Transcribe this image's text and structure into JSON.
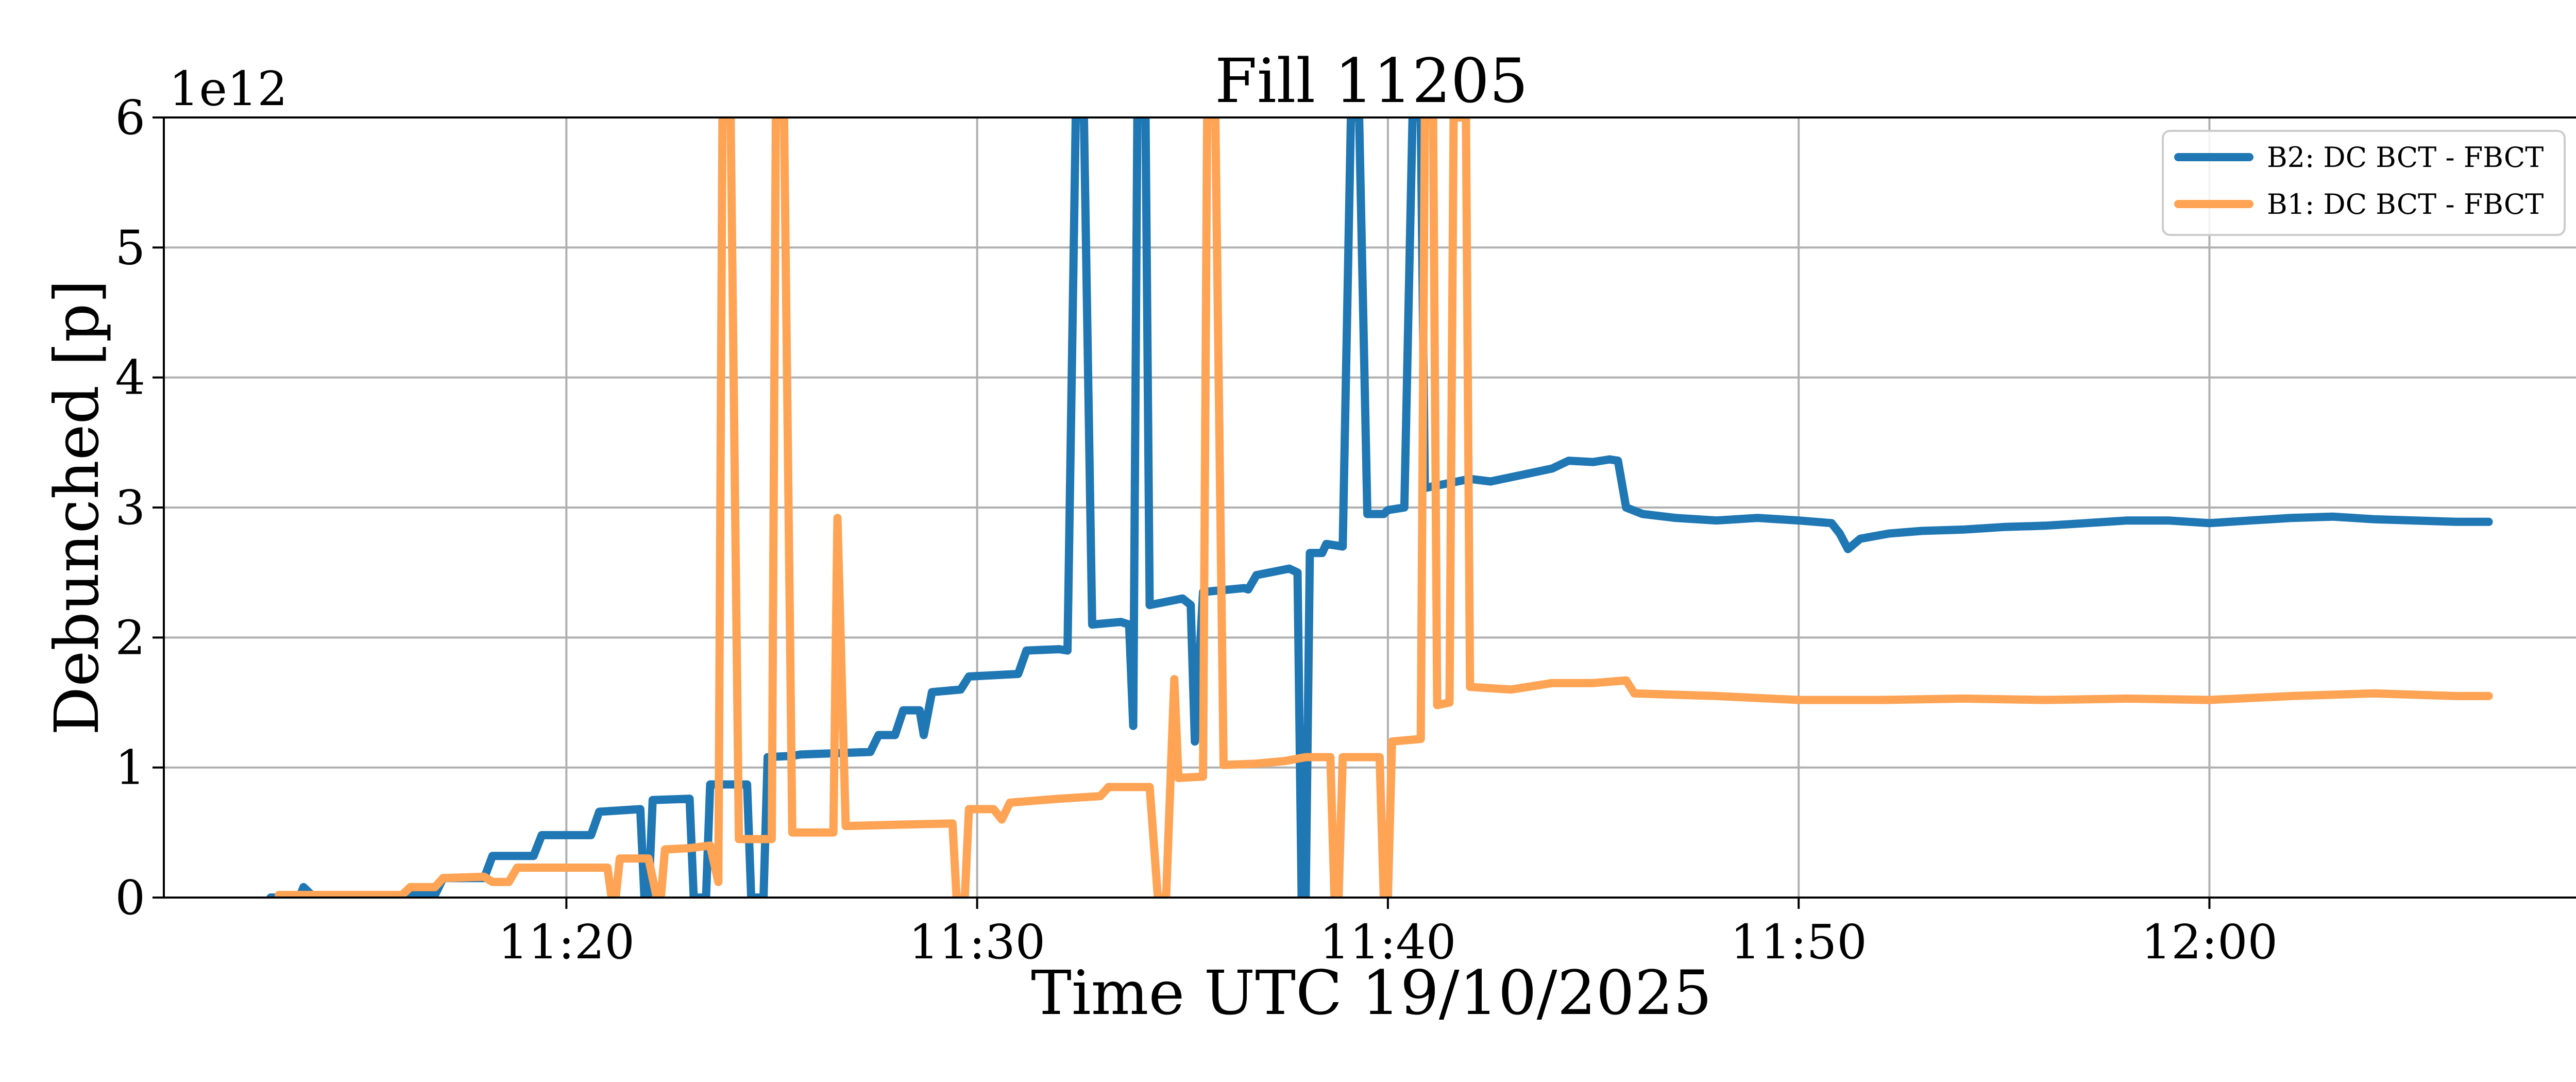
{
  "chart_data": {
    "type": "line",
    "title": "Fill 11205",
    "xlabel": "Time UTC 19/10/2025",
    "ylabel": "Debunched [p]",
    "y_offset_label": "1e12",
    "xlim": [
      "11:10:12",
      "12:09:00"
    ],
    "ylim": [
      0,
      6
    ],
    "x_ticks": [
      "11:20",
      "11:30",
      "11:40",
      "11:50",
      "12:00"
    ],
    "y_ticks": [
      "0",
      "1",
      "2",
      "3",
      "4",
      "5",
      "6"
    ],
    "grid": true,
    "legend_position": "top-right",
    "series": [
      {
        "name": "B2: DC BCT - FBCT",
        "color": "#1f77b4",
        "points": [
          [
            "11:12:48",
            0.0
          ],
          [
            "11:13:00",
            0.0
          ],
          [
            "11:13:30",
            0.0
          ],
          [
            "11:13:36",
            0.08
          ],
          [
            "11:13:48",
            0.02
          ],
          [
            "11:16:48",
            0.02
          ],
          [
            "11:17:00",
            0.15
          ],
          [
            "11:18:00",
            0.15
          ],
          [
            "11:18:12",
            0.32
          ],
          [
            "11:19:12",
            0.32
          ],
          [
            "11:19:24",
            0.48
          ],
          [
            "11:20:36",
            0.48
          ],
          [
            "11:20:48",
            0.66
          ],
          [
            "11:21:48",
            0.68
          ],
          [
            "11:21:54",
            0.0
          ],
          [
            "11:22:00",
            0.0
          ],
          [
            "11:22:06",
            0.75
          ],
          [
            "11:23:00",
            0.76
          ],
          [
            "11:23:06",
            0.0
          ],
          [
            "11:23:24",
            0.0
          ],
          [
            "11:23:30",
            0.87
          ],
          [
            "11:24:24",
            0.87
          ],
          [
            "11:24:30",
            0.0
          ],
          [
            "11:24:48",
            0.0
          ],
          [
            "11:24:54",
            1.08
          ],
          [
            "11:25:30",
            1.09
          ],
          [
            "11:25:42",
            1.1
          ],
          [
            "11:27:24",
            1.12
          ],
          [
            "11:27:36",
            1.25
          ],
          [
            "11:28:00",
            1.25
          ],
          [
            "11:28:12",
            1.44
          ],
          [
            "11:28:36",
            1.44
          ],
          [
            "11:28:42",
            1.25
          ],
          [
            "11:28:54",
            1.58
          ],
          [
            "11:29:36",
            1.6
          ],
          [
            "11:29:48",
            1.7
          ],
          [
            "11:31:00",
            1.72
          ],
          [
            "11:31:12",
            1.9
          ],
          [
            "11:32:00",
            1.91
          ],
          [
            "11:32:12",
            1.9
          ],
          [
            "11:32:24",
            6.0
          ],
          [
            "11:32:36",
            6.0
          ],
          [
            "11:32:48",
            2.1
          ],
          [
            "11:33:30",
            2.12
          ],
          [
            "11:33:42",
            2.1
          ],
          [
            "11:33:48",
            1.32
          ],
          [
            "11:33:54",
            6.0
          ],
          [
            "11:34:06",
            6.0
          ],
          [
            "11:34:12",
            2.25
          ],
          [
            "11:35:00",
            2.3
          ],
          [
            "11:35:12",
            2.25
          ],
          [
            "11:35:18",
            1.2
          ],
          [
            "11:35:30",
            2.35
          ],
          [
            "11:36:30",
            2.38
          ],
          [
            "11:36:36",
            2.37
          ],
          [
            "11:36:48",
            2.48
          ],
          [
            "11:37:36",
            2.53
          ],
          [
            "11:37:48",
            2.5
          ],
          [
            "11:37:54",
            0.0
          ],
          [
            "11:38:00",
            0.0
          ],
          [
            "11:38:06",
            2.65
          ],
          [
            "11:38:24",
            2.65
          ],
          [
            "11:38:30",
            2.72
          ],
          [
            "11:38:54",
            2.7
          ],
          [
            "11:39:06",
            6.0
          ],
          [
            "11:39:18",
            6.0
          ],
          [
            "11:39:30",
            2.95
          ],
          [
            "11:39:54",
            2.95
          ],
          [
            "11:40:00",
            2.98
          ],
          [
            "11:40:24",
            3.0
          ],
          [
            "11:40:36",
            6.0
          ],
          [
            "11:40:48",
            6.0
          ],
          [
            "11:40:54",
            3.15
          ],
          [
            "11:42:00",
            3.22
          ],
          [
            "11:42:30",
            3.2
          ],
          [
            "11:44:00",
            3.3
          ],
          [
            "11:44:24",
            3.36
          ],
          [
            "11:45:00",
            3.35
          ],
          [
            "11:45:24",
            3.37
          ],
          [
            "11:45:36",
            3.36
          ],
          [
            "11:45:48",
            3.0
          ],
          [
            "11:46:12",
            2.95
          ],
          [
            "11:47:00",
            2.92
          ],
          [
            "11:48:00",
            2.9
          ],
          [
            "11:49:00",
            2.92
          ],
          [
            "11:50:00",
            2.9
          ],
          [
            "11:50:48",
            2.88
          ],
          [
            "11:51:00",
            2.8
          ],
          [
            "11:51:12",
            2.68
          ],
          [
            "11:51:30",
            2.76
          ],
          [
            "11:52:12",
            2.8
          ],
          [
            "11:53:00",
            2.82
          ],
          [
            "11:54:00",
            2.83
          ],
          [
            "11:55:00",
            2.85
          ],
          [
            "11:56:00",
            2.86
          ],
          [
            "11:57:00",
            2.88
          ],
          [
            "11:58:00",
            2.9
          ],
          [
            "11:59:00",
            2.9
          ],
          [
            "12:00:00",
            2.88
          ],
          [
            "12:01:00",
            2.9
          ],
          [
            "12:02:00",
            2.92
          ],
          [
            "12:03:00",
            2.93
          ],
          [
            "12:04:00",
            2.91
          ],
          [
            "12:05:00",
            2.9
          ],
          [
            "12:06:00",
            2.89
          ],
          [
            "12:06:48",
            2.89
          ]
        ]
      },
      {
        "name": "B1: DC BCT - FBCT",
        "color": "#ffa354",
        "points": [
          [
            "11:13:00",
            0.02
          ],
          [
            "11:16:00",
            0.02
          ],
          [
            "11:16:12",
            0.08
          ],
          [
            "11:16:48",
            0.08
          ],
          [
            "11:17:00",
            0.15
          ],
          [
            "11:18:00",
            0.16
          ],
          [
            "11:18:12",
            0.12
          ],
          [
            "11:18:36",
            0.12
          ],
          [
            "11:18:48",
            0.23
          ],
          [
            "11:21:00",
            0.23
          ],
          [
            "11:21:06",
            0.0
          ],
          [
            "11:21:12",
            0.0
          ],
          [
            "11:21:18",
            0.3
          ],
          [
            "11:22:00",
            0.3
          ],
          [
            "11:22:12",
            0.0
          ],
          [
            "11:22:18",
            0.0
          ],
          [
            "11:22:24",
            0.37
          ],
          [
            "11:23:00",
            0.38
          ],
          [
            "11:23:30",
            0.4
          ],
          [
            "11:23:42",
            0.12
          ],
          [
            "11:23:48",
            6.0
          ],
          [
            "11:24:00",
            6.0
          ],
          [
            "11:24:12",
            0.45
          ],
          [
            "11:25:00",
            0.45
          ],
          [
            "11:25:06",
            6.0
          ],
          [
            "11:25:18",
            6.0
          ],
          [
            "11:25:30",
            0.5
          ],
          [
            "11:26:30",
            0.5
          ],
          [
            "11:26:36",
            2.92
          ],
          [
            "11:26:48",
            0.55
          ],
          [
            "11:28:00",
            0.56
          ],
          [
            "11:29:24",
            0.57
          ],
          [
            "11:29:30",
            0.0
          ],
          [
            "11:29:42",
            0.0
          ],
          [
            "11:29:48",
            0.68
          ],
          [
            "11:30:24",
            0.68
          ],
          [
            "11:30:36",
            0.6
          ],
          [
            "11:30:48",
            0.73
          ],
          [
            "11:32:00",
            0.76
          ],
          [
            "11:33:00",
            0.78
          ],
          [
            "11:33:12",
            0.85
          ],
          [
            "11:34:12",
            0.85
          ],
          [
            "11:34:24",
            0.0
          ],
          [
            "11:34:36",
            0.0
          ],
          [
            "11:34:48",
            1.68
          ],
          [
            "11:34:54",
            0.92
          ],
          [
            "11:35:30",
            0.93
          ],
          [
            "11:35:36",
            6.0
          ],
          [
            "11:35:48",
            6.0
          ],
          [
            "11:36:00",
            1.02
          ],
          [
            "11:36:48",
            1.03
          ],
          [
            "11:37:30",
            1.05
          ],
          [
            "11:38:00",
            1.08
          ],
          [
            "11:38:36",
            1.08
          ],
          [
            "11:38:42",
            0.0
          ],
          [
            "11:38:48",
            0.0
          ],
          [
            "11:38:54",
            1.08
          ],
          [
            "11:39:48",
            1.08
          ],
          [
            "11:39:54",
            0.0
          ],
          [
            "11:40:00",
            0.0
          ],
          [
            "11:40:06",
            1.2
          ],
          [
            "11:40:48",
            1.22
          ],
          [
            "11:40:54",
            6.0
          ],
          [
            "11:41:06",
            6.0
          ],
          [
            "11:41:12",
            1.48
          ],
          [
            "11:41:30",
            1.5
          ],
          [
            "11:41:36",
            6.0
          ],
          [
            "11:41:54",
            6.0
          ],
          [
            "11:42:00",
            1.62
          ],
          [
            "11:43:00",
            1.6
          ],
          [
            "11:44:00",
            1.65
          ],
          [
            "11:45:00",
            1.65
          ],
          [
            "11:45:48",
            1.67
          ],
          [
            "11:46:00",
            1.57
          ],
          [
            "11:48:00",
            1.55
          ],
          [
            "11:50:00",
            1.52
          ],
          [
            "11:52:00",
            1.52
          ],
          [
            "11:54:00",
            1.53
          ],
          [
            "11:56:00",
            1.52
          ],
          [
            "11:58:00",
            1.53
          ],
          [
            "12:00:00",
            1.52
          ],
          [
            "12:02:00",
            1.55
          ],
          [
            "12:04:00",
            1.57
          ],
          [
            "12:06:00",
            1.55
          ],
          [
            "12:06:48",
            1.55
          ]
        ]
      }
    ]
  }
}
